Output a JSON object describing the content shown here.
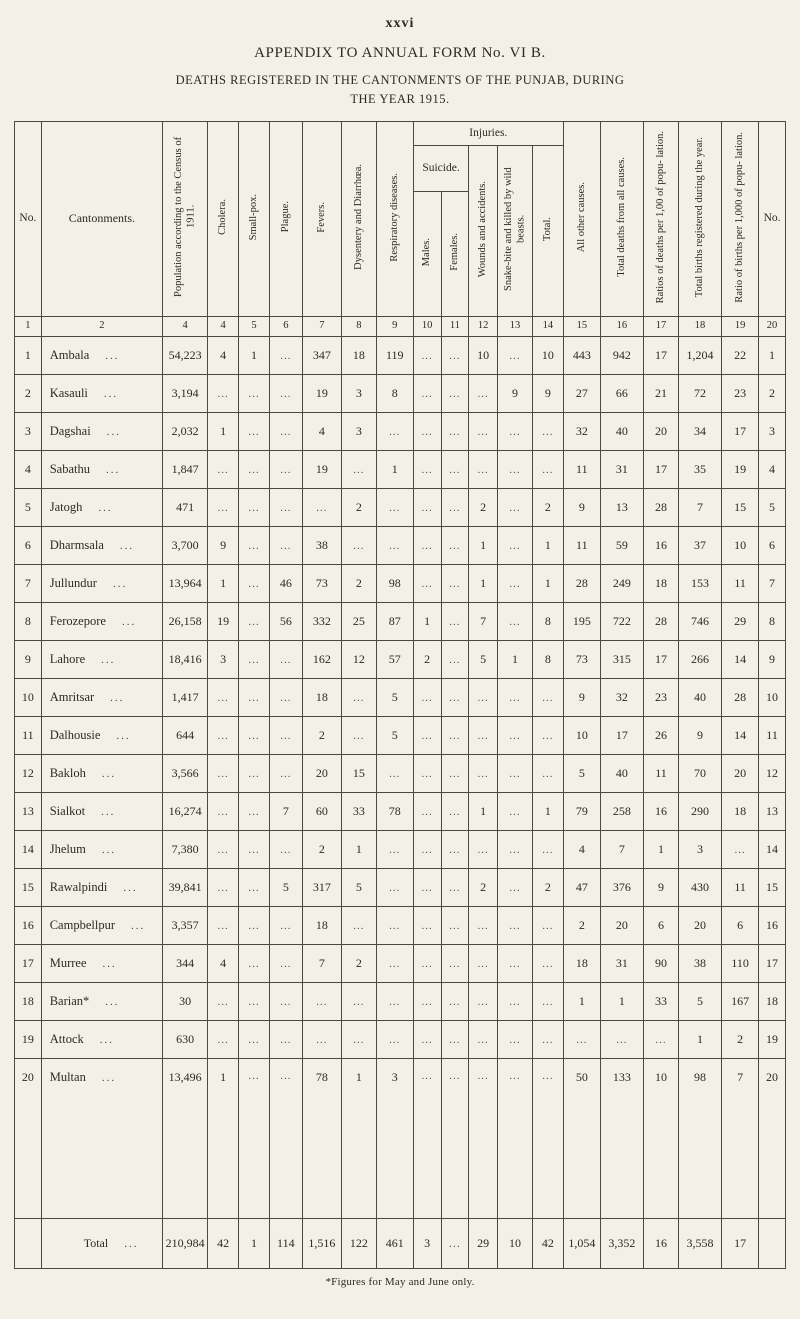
{
  "page": {
    "page_number": "xxvi",
    "title": "APPENDIX TO ANNUAL FORM No. VI B.",
    "subtitle_line1": "DEATHS REGISTERED IN THE CANTONMENTS OF THE PUNJAB, DURING",
    "subtitle_line2": "THE YEAR 1915.",
    "footnote": "*Figures for May and June only."
  },
  "table": {
    "leader": "...",
    "headers": {
      "no": "No.",
      "cantonments": "Cantonments.",
      "population": "Population according to the Census of 1911.",
      "cholera": "Cholera.",
      "smallpox": "Small-pox.",
      "plague": "Plague.",
      "fevers": "Fevers.",
      "dysentery": "Dysentery and Diarrhœa.",
      "respiratory": "Respiratory diseases.",
      "injuries": "Injuries.",
      "suicide": "Suicide.",
      "males": "Males.",
      "females": "Females.",
      "wounds": "Wounds and accidents.",
      "snakebite": "Snake-bite and killed by wild beasts.",
      "injuries_total": "Total.",
      "all_other": "All other causes.",
      "total_deaths": "Total deaths from all causes.",
      "death_ratio": "Ratios of deaths per 1,00 of popu- lation.",
      "births": "Total births registered during the year.",
      "birth_ratio": "Ratio of births per 1,000 of popu- lation.",
      "no_right": "No."
    },
    "column_numbers": [
      "1",
      "2",
      "4",
      "4",
      "5",
      "6",
      "7",
      "8",
      "9",
      "10",
      "11",
      "12",
      "13",
      "14",
      "15",
      "16",
      "17",
      "18",
      "19",
      "20"
    ],
    "rows": [
      {
        "no": "1",
        "name": "Ambala",
        "values": [
          "54,223",
          "4",
          "1",
          "...",
          "347",
          "18",
          "119",
          "...",
          "...",
          "10",
          "...",
          "10",
          "443",
          "942",
          "17",
          "1,204",
          "22"
        ],
        "no2": "1"
      },
      {
        "no": "2",
        "name": "Kasauli",
        "values": [
          "3,194",
          "...",
          "...",
          "...",
          "19",
          "3",
          "8",
          "...",
          "...",
          "...",
          "9",
          "9",
          "27",
          "66",
          "21",
          "72",
          "23"
        ],
        "no2": "2"
      },
      {
        "no": "3",
        "name": "Dagshai",
        "values": [
          "2,032",
          "1",
          "...",
          "...",
          "4",
          "3",
          "...",
          "...",
          "...",
          "...",
          "...",
          "...",
          "32",
          "40",
          "20",
          "34",
          "17"
        ],
        "no2": "3"
      },
      {
        "no": "4",
        "name": "Sabathu",
        "values": [
          "1,847",
          "...",
          "...",
          "...",
          "19",
          "...",
          "1",
          "...",
          "...",
          "...",
          "...",
          "...",
          "11",
          "31",
          "17",
          "35",
          "19"
        ],
        "no2": "4"
      },
      {
        "no": "5",
        "name": "Jatogh",
        "values": [
          "471",
          "...",
          "...",
          "...",
          "...",
          "2",
          "...",
          "...",
          "...",
          "2",
          "...",
          "2",
          "9",
          "13",
          "28",
          "7",
          "15"
        ],
        "no2": "5"
      },
      {
        "no": "6",
        "name": "Dharmsala",
        "values": [
          "3,700",
          "9",
          "...",
          "...",
          "38",
          "...",
          "...",
          "...",
          "...",
          "1",
          "...",
          "1",
          "11",
          "59",
          "16",
          "37",
          "10"
        ],
        "no2": "6"
      },
      {
        "no": "7",
        "name": "Jullundur",
        "values": [
          "13,964",
          "1",
          "...",
          "46",
          "73",
          "2",
          "98",
          "...",
          "...",
          "1",
          "...",
          "1",
          "28",
          "249",
          "18",
          "153",
          "11"
        ],
        "no2": "7"
      },
      {
        "no": "8",
        "name": "Ferozepore",
        "values": [
          "26,158",
          "19",
          "...",
          "56",
          "332",
          "25",
          "87",
          "1",
          "...",
          "7",
          "...",
          "8",
          "195",
          "722",
          "28",
          "746",
          "29"
        ],
        "no2": "8"
      },
      {
        "no": "9",
        "name": "Lahore",
        "values": [
          "18,416",
          "3",
          "...",
          "...",
          "162",
          "12",
          "57",
          "2",
          "...",
          "5",
          "1",
          "8",
          "73",
          "315",
          "17",
          "266",
          "14"
        ],
        "no2": "9"
      },
      {
        "no": "10",
        "name": "Amritsar",
        "values": [
          "1,417",
          "...",
          "...",
          "...",
          "18",
          "...",
          "5",
          "...",
          "...",
          "...",
          "...",
          "...",
          "9",
          "32",
          "23",
          "40",
          "28"
        ],
        "no2": "10"
      },
      {
        "no": "11",
        "name": "Dalhousie",
        "values": [
          "644",
          "...",
          "...",
          "...",
          "2",
          "...",
          "5",
          "...",
          "...",
          "...",
          "...",
          "...",
          "10",
          "17",
          "26",
          "9",
          "14"
        ],
        "no2": "11"
      },
      {
        "no": "12",
        "name": "Bakloh",
        "values": [
          "3,566",
          "...",
          "...",
          "...",
          "20",
          "15",
          "...",
          "...",
          "...",
          "...",
          "...",
          "...",
          "5",
          "40",
          "11",
          "70",
          "20"
        ],
        "no2": "12"
      },
      {
        "no": "13",
        "name": "Sialkot",
        "values": [
          "16,274",
          "...",
          "...",
          "7",
          "60",
          "33",
          "78",
          "...",
          "...",
          "1",
          "...",
          "1",
          "79",
          "258",
          "16",
          "290",
          "18"
        ],
        "no2": "13"
      },
      {
        "no": "14",
        "name": "Jhelum",
        "values": [
          "7,380",
          "...",
          "...",
          "...",
          "2",
          "1",
          "...",
          "...",
          "...",
          "...",
          "...",
          "...",
          "4",
          "7",
          "1",
          "3",
          "..."
        ],
        "no2": "14"
      },
      {
        "no": "15",
        "name": "Rawalpindi",
        "values": [
          "39,841",
          "...",
          "...",
          "5",
          "317",
          "5",
          "...",
          "...",
          "...",
          "2",
          "...",
          "2",
          "47",
          "376",
          "9",
          "430",
          "11"
        ],
        "no2": "15"
      },
      {
        "no": "16",
        "name": "Campbellpur",
        "values": [
          "3,357",
          "...",
          "...",
          "...",
          "18",
          "...",
          "...",
          "...",
          "...",
          "...",
          "...",
          "...",
          "2",
          "20",
          "6",
          "20",
          "6"
        ],
        "no2": "16"
      },
      {
        "no": "17",
        "name": "Murree",
        "values": [
          "344",
          "4",
          "...",
          "...",
          "7",
          "2",
          "...",
          "...",
          "...",
          "...",
          "...",
          "...",
          "18",
          "31",
          "90",
          "38",
          "110"
        ],
        "no2": "17"
      },
      {
        "no": "18",
        "name": "Barian*",
        "values": [
          "30",
          "...",
          "...",
          "...",
          "...",
          "...",
          "...",
          "...",
          "...",
          "...",
          "...",
          "...",
          "1",
          "1",
          "33",
          "5",
          "167"
        ],
        "no2": "18"
      },
      {
        "no": "19",
        "name": "Attock",
        "values": [
          "630",
          "...",
          "...",
          "...",
          "...",
          "...",
          "...",
          "...",
          "...",
          "...",
          "...",
          "...",
          "...",
          "...",
          "...",
          "1",
          "2"
        ],
        "no2": "19"
      },
      {
        "no": "20",
        "name": "Multan",
        "values": [
          "13,496",
          "1",
          "...",
          "...",
          "78",
          "1",
          "3",
          "...",
          "...",
          "...",
          "...",
          "...",
          "50",
          "133",
          "10",
          "98",
          "7"
        ],
        "no2": "20",
        "tall": true
      }
    ],
    "total_row": {
      "label": "Total",
      "values": [
        "210,984",
        "42",
        "1",
        "114",
        "1,516",
        "122",
        "461",
        "3",
        "...",
        "29",
        "10",
        "42",
        "1,054",
        "3,352",
        "16",
        "3,558",
        "17"
      ],
      "no2": ""
    }
  }
}
